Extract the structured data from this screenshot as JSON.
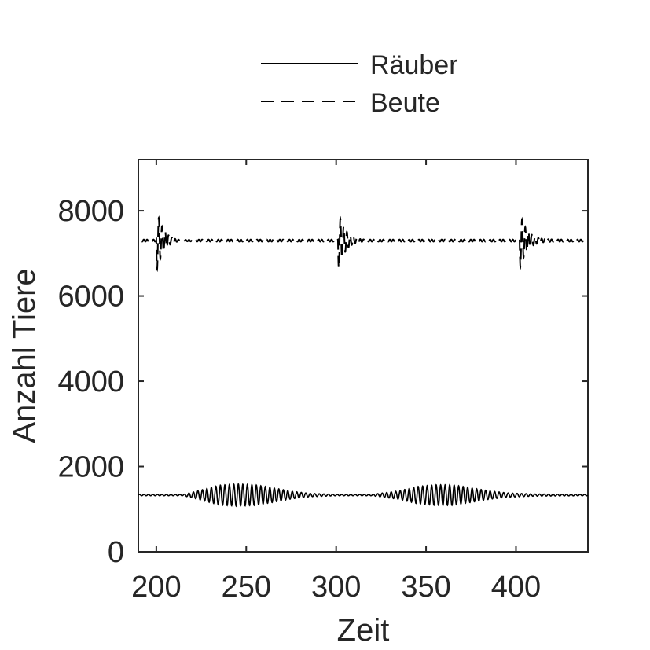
{
  "chart_data": {
    "type": "line",
    "title": "",
    "xlabel": "Zeit",
    "ylabel": "Anzahl Tiere",
    "xlim": [
      190,
      440
    ],
    "ylim": [
      0,
      9200
    ],
    "xticks": [
      200,
      250,
      300,
      350,
      400
    ],
    "yticks": [
      0,
      2000,
      4000,
      6000,
      8000
    ],
    "grid": false,
    "legend_position": "top-center (outside plot)",
    "series": [
      {
        "name": "Räuber",
        "style": "solid",
        "color": "#000000",
        "baseline": 1330,
        "oscillation_period": 2.5,
        "note_amplitude_envelope": [
          [
            190,
            15
          ],
          [
            215,
            15
          ],
          [
            225,
            120
          ],
          [
            235,
            230
          ],
          [
            245,
            260
          ],
          [
            255,
            240
          ],
          [
            265,
            170
          ],
          [
            275,
            90
          ],
          [
            285,
            40
          ],
          [
            300,
            15
          ],
          [
            320,
            15
          ],
          [
            335,
            100
          ],
          [
            345,
            200
          ],
          [
            355,
            240
          ],
          [
            365,
            240
          ],
          [
            375,
            170
          ],
          [
            385,
            100
          ],
          [
            395,
            50
          ],
          [
            410,
            25
          ],
          [
            440,
            15
          ]
        ]
      },
      {
        "name": "Beute",
        "style": "dashed",
        "color": "#000000",
        "baseline": 7300,
        "disturbances": [
          {
            "x": 200,
            "min": 6250,
            "max": 7800
          },
          {
            "x": 301,
            "min": 6350,
            "max": 7800
          },
          {
            "x": 402,
            "min": 6400,
            "max": 7750
          }
        ]
      }
    ]
  }
}
